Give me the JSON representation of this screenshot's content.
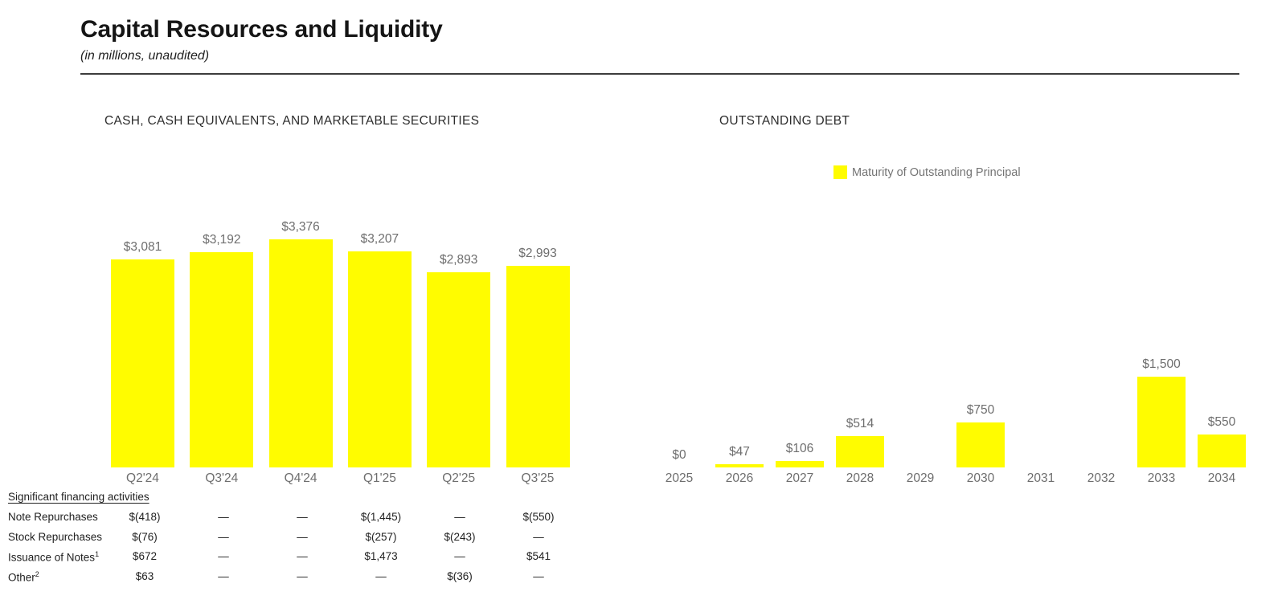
{
  "header": {
    "title": "Capital Resources and Liquidity",
    "subtitle": "(in millions, unaudited)"
  },
  "colors": {
    "bar_yellow": "#FFFC00",
    "value_label_gray": "#6E6E6E",
    "text_dark": "#222222"
  },
  "chart_data": [
    {
      "id": "cash",
      "type": "bar",
      "title": "CASH, CASH EQUIVALENTS, AND MARKETABLE SECURITIES",
      "categories": [
        "Q2'24",
        "Q3'24",
        "Q4'24",
        "Q1'25",
        "Q2'25",
        "Q3'25"
      ],
      "values": [
        3081,
        3192,
        3376,
        3207,
        2893,
        2993
      ],
      "labels": [
        "$3,081",
        "$3,192",
        "$3,376",
        "$3,207",
        "$2,893",
        "$2,993"
      ],
      "bar_color": "#FFFC00",
      "grid": false,
      "legend": null,
      "ylim": [
        0,
        3400
      ]
    },
    {
      "id": "debt",
      "type": "bar",
      "title": "OUTSTANDING DEBT",
      "legend": "Maturity of Outstanding Principal",
      "legend_position": "top",
      "categories": [
        "2025",
        "2026",
        "2027",
        "2028",
        "2029",
        "2030",
        "2031",
        "2032",
        "2033",
        "2034"
      ],
      "values": [
        0,
        47,
        106,
        514,
        null,
        750,
        null,
        null,
        1500,
        550
      ],
      "labels": [
        "$0",
        "$47",
        "$106",
        "$514",
        "",
        "$750",
        "",
        "",
        "$1,500",
        "$550"
      ],
      "bar_color": "#FFFC00",
      "grid": false,
      "ylim": [
        0,
        1600
      ]
    }
  ],
  "financing_table": {
    "heading": "Significant financing activities",
    "rows": [
      {
        "label": "Note Repurchases",
        "sup": "",
        "values": [
          "$(418)",
          "—",
          "—",
          "$(1,445)",
          "—",
          "$(550)"
        ]
      },
      {
        "label": "Stock Repurchases",
        "sup": "",
        "values": [
          "$(76)",
          "—",
          "—",
          "$(257)",
          "$(243)",
          "—"
        ]
      },
      {
        "label": "Issuance of Notes",
        "sup": "1",
        "values": [
          "$672",
          "—",
          "—",
          "$1,473",
          "—",
          "$541"
        ]
      },
      {
        "label": "Other",
        "sup": "2",
        "values": [
          "$63",
          "—",
          "—",
          "—",
          "$(36)",
          "—"
        ]
      }
    ]
  }
}
